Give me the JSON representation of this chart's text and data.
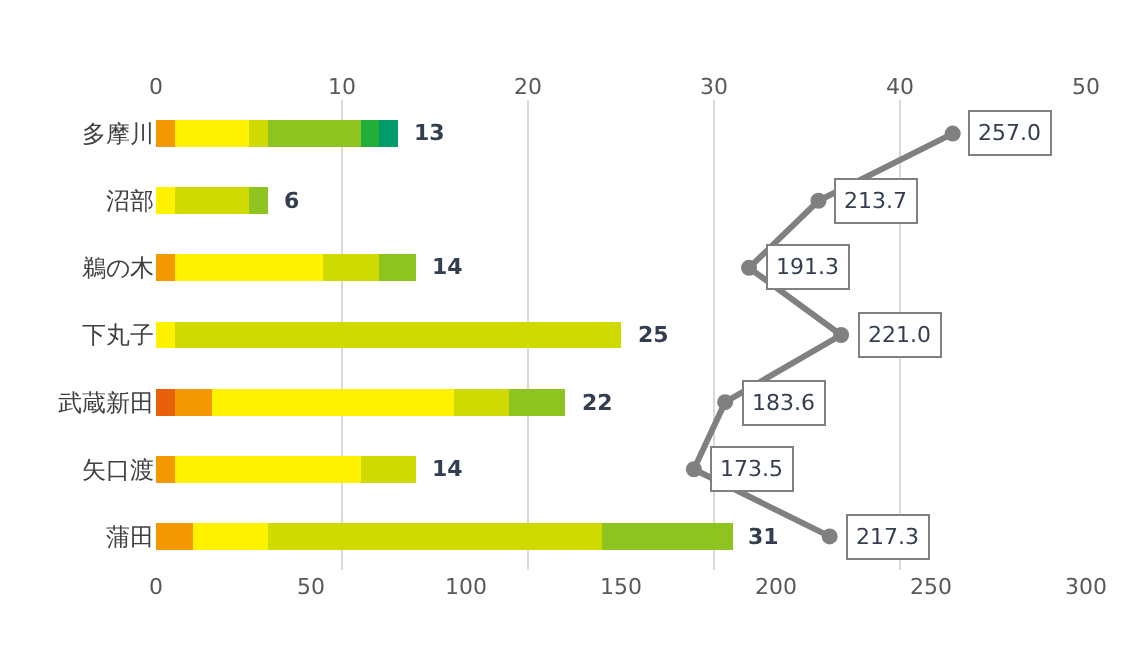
{
  "chart_data": {
    "type": "bar",
    "orientation": "horizontal",
    "stacked": true,
    "categories": [
      "多摩川",
      "沼部",
      "鵜の木",
      "下丸子",
      "武蔵新田",
      "矢口渡",
      "蒲田"
    ],
    "series": [
      {
        "color": "#e8600a",
        "axis": "x2",
        "values": [
          0,
          0,
          0,
          0,
          1,
          0,
          0
        ]
      },
      {
        "color": "#f39800",
        "axis": "x2",
        "values": [
          1,
          0,
          1,
          0,
          2,
          1,
          2
        ]
      },
      {
        "color": "#fff200",
        "axis": "x2",
        "values": [
          4,
          1,
          8,
          1,
          13,
          10,
          4
        ]
      },
      {
        "color": "#cfdb00",
        "axis": "x2",
        "values": [
          1,
          4,
          3,
          24,
          3,
          3,
          18
        ]
      },
      {
        "color": "#8fc31f",
        "axis": "x2",
        "values": [
          5,
          1,
          2,
          0,
          3,
          0,
          7
        ]
      },
      {
        "color": "#22ac38",
        "axis": "x2",
        "values": [
          1,
          0,
          0,
          0,
          0,
          0,
          0
        ]
      },
      {
        "color": "#009b6b",
        "axis": "x2",
        "values": [
          1,
          0,
          0,
          0,
          0,
          0,
          0
        ]
      },
      {
        "type": "line",
        "color": "#808080",
        "marker": "circle",
        "values": [
          257.0,
          213.7,
          191.3,
          221.0,
          183.6,
          173.5,
          217.3
        ],
        "value_labels": [
          "257.0",
          "213.7",
          "191.3",
          "221.0",
          "183.6",
          "173.5",
          "217.3"
        ]
      }
    ],
    "totals": [
      "13",
      "6",
      "14",
      "25",
      "22",
      "14",
      "31"
    ],
    "xlim": [
      0,
      300
    ],
    "xticks": [
      0,
      50,
      100,
      150,
      200,
      250,
      300
    ],
    "x2lim": [
      0,
      50
    ],
    "x2ticks": [
      0,
      10,
      20,
      30,
      40,
      50
    ],
    "grid": "x2"
  }
}
